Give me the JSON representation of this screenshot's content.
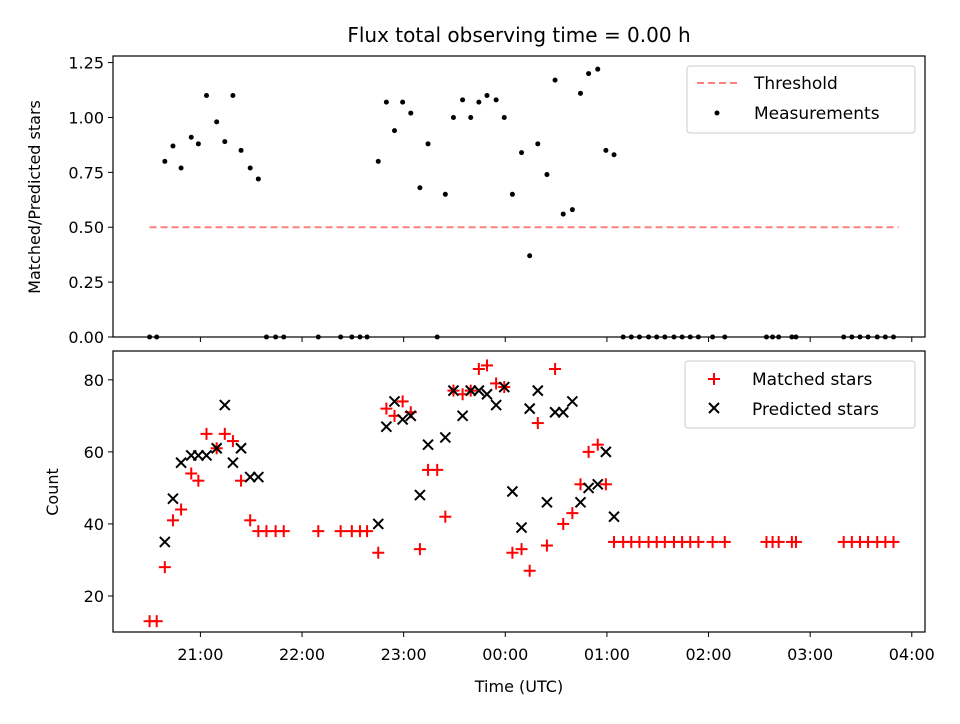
{
  "title": "Flux total observing time = 0.00 h",
  "colors": {
    "threshold": "#ff7f7f",
    "measurement": "#000000",
    "matched": "#ff0000",
    "predicted": "#000000"
  },
  "chart_data": [
    {
      "type": "scatter",
      "title": "Flux total observing time = 0.00 h",
      "ylabel": "Matched/Predicted stars",
      "xlabel": "",
      "x_unit": "hours after 21:00 UTC (axis shows clock times)",
      "xlim": [
        -0.86,
        7.13
      ],
      "ylim": [
        0,
        1.28
      ],
      "yticks": [
        0.0,
        0.25,
        0.5,
        0.75,
        1.0,
        1.25
      ],
      "ytick_labels": [
        "0.00",
        "0.25",
        "0.50",
        "0.75",
        "1.00",
        "1.25"
      ],
      "xticks": [
        0,
        1,
        2,
        3,
        4,
        5,
        6,
        7
      ],
      "legend": {
        "placement": "top-right",
        "entries": [
          "Threshold",
          "Measurements"
        ]
      },
      "threshold": {
        "name": "Threshold",
        "y": 0.5,
        "x_range": [
          -0.5,
          6.87
        ]
      },
      "series": [
        {
          "name": "Measurements",
          "points": [
            [
              -0.5,
              0
            ],
            [
              -0.43,
              0
            ],
            [
              -0.35,
              0.8
            ],
            [
              -0.27,
              0.87
            ],
            [
              -0.19,
              0.77
            ],
            [
              -0.09,
              0.91
            ],
            [
              -0.02,
              0.88
            ],
            [
              0.06,
              1.1
            ],
            [
              0.16,
              0.98
            ],
            [
              0.24,
              0.89
            ],
            [
              0.32,
              1.1
            ],
            [
              0.4,
              0.85
            ],
            [
              0.49,
              0.77
            ],
            [
              0.57,
              0.72
            ],
            [
              0.65,
              0
            ],
            [
              0.74,
              0
            ],
            [
              0.82,
              0
            ],
            [
              1.16,
              0
            ],
            [
              1.38,
              0
            ],
            [
              1.49,
              0
            ],
            [
              1.57,
              0
            ],
            [
              1.64,
              0
            ],
            [
              1.75,
              0.8
            ],
            [
              1.83,
              1.07
            ],
            [
              1.91,
              0.94
            ],
            [
              1.99,
              1.07
            ],
            [
              2.07,
              1.02
            ],
            [
              2.16,
              0.68
            ],
            [
              2.24,
              0.88
            ],
            [
              2.33,
              0
            ],
            [
              2.41,
              0.65
            ],
            [
              2.49,
              1.0
            ],
            [
              2.58,
              1.08
            ],
            [
              2.66,
              1.0
            ],
            [
              2.74,
              1.07
            ],
            [
              2.82,
              1.1
            ],
            [
              2.91,
              1.08
            ],
            [
              2.99,
              1.0
            ],
            [
              3.07,
              0.65
            ],
            [
              3.16,
              0.84
            ],
            [
              3.24,
              0.37
            ],
            [
              3.32,
              0.88
            ],
            [
              3.41,
              0.74
            ],
            [
              3.49,
              1.17
            ],
            [
              3.57,
              0.56
            ],
            [
              3.66,
              0.58
            ],
            [
              3.74,
              1.11
            ],
            [
              3.82,
              1.2
            ],
            [
              3.91,
              1.22
            ],
            [
              3.99,
              0.85
            ],
            [
              4.07,
              0.83
            ],
            [
              4.16,
              0
            ],
            [
              4.24,
              0
            ],
            [
              4.32,
              0
            ],
            [
              4.41,
              0
            ],
            [
              4.49,
              0
            ],
            [
              4.57,
              0
            ],
            [
              4.66,
              0
            ],
            [
              4.74,
              0
            ],
            [
              4.82,
              0
            ],
            [
              4.9,
              0
            ],
            [
              5.04,
              0
            ],
            [
              5.16,
              0
            ],
            [
              5.57,
              0
            ],
            [
              5.63,
              0
            ],
            [
              5.69,
              0
            ],
            [
              5.82,
              0
            ],
            [
              5.86,
              0
            ],
            [
              6.33,
              0
            ],
            [
              6.41,
              0
            ],
            [
              6.49,
              0
            ],
            [
              6.57,
              0
            ],
            [
              6.66,
              0
            ],
            [
              6.74,
              0
            ],
            [
              6.82,
              0
            ]
          ]
        }
      ]
    },
    {
      "type": "scatter",
      "ylabel": "Count",
      "xlabel": "Time (UTC)",
      "x_unit": "hours after 21:00 UTC (axis shows clock times)",
      "xlim": [
        -0.86,
        7.13
      ],
      "ylim": [
        10,
        88
      ],
      "yticks": [
        20,
        40,
        60,
        80
      ],
      "ytick_labels": [
        "20",
        "40",
        "60",
        "80"
      ],
      "xticks": [
        0,
        1,
        2,
        3,
        4,
        5,
        6,
        7
      ],
      "xtick_labels": [
        "21:00",
        "22:00",
        "23:00",
        "00:00",
        "01:00",
        "02:00",
        "03:00",
        "04:00"
      ],
      "legend": {
        "placement": "top-right",
        "entries": [
          "Matched stars",
          "Predicted stars"
        ]
      },
      "series": [
        {
          "name": "Matched stars",
          "points": [
            [
              -0.5,
              13
            ],
            [
              -0.43,
              13
            ],
            [
              -0.35,
              28
            ],
            [
              -0.27,
              41
            ],
            [
              -0.19,
              44
            ],
            [
              -0.09,
              54
            ],
            [
              -0.02,
              52
            ],
            [
              0.06,
              65
            ],
            [
              0.16,
              61
            ],
            [
              0.24,
              65
            ],
            [
              0.32,
              63
            ],
            [
              0.4,
              52
            ],
            [
              0.49,
              41
            ],
            [
              0.57,
              38
            ],
            [
              0.65,
              38
            ],
            [
              0.74,
              38
            ],
            [
              0.82,
              38
            ],
            [
              1.16,
              38
            ],
            [
              1.38,
              38
            ],
            [
              1.49,
              38
            ],
            [
              1.57,
              38
            ],
            [
              1.64,
              38
            ],
            [
              1.75,
              32
            ],
            [
              1.83,
              72
            ],
            [
              1.91,
              70
            ],
            [
              1.99,
              74
            ],
            [
              2.07,
              71
            ],
            [
              2.16,
              33
            ],
            [
              2.24,
              55
            ],
            [
              2.33,
              55
            ],
            [
              2.41,
              42
            ],
            [
              2.49,
              77
            ],
            [
              2.58,
              76
            ],
            [
              2.66,
              77
            ],
            [
              2.74,
              83
            ],
            [
              2.82,
              84
            ],
            [
              2.91,
              79
            ],
            [
              2.99,
              78
            ],
            [
              3.07,
              32
            ],
            [
              3.16,
              33
            ],
            [
              3.24,
              27
            ],
            [
              3.32,
              68
            ],
            [
              3.41,
              34
            ],
            [
              3.49,
              83
            ],
            [
              3.57,
              40
            ],
            [
              3.66,
              43
            ],
            [
              3.74,
              51
            ],
            [
              3.82,
              60
            ],
            [
              3.91,
              62
            ],
            [
              3.99,
              51
            ],
            [
              4.07,
              35
            ],
            [
              4.16,
              35
            ],
            [
              4.24,
              35
            ],
            [
              4.32,
              35
            ],
            [
              4.41,
              35
            ],
            [
              4.49,
              35
            ],
            [
              4.57,
              35
            ],
            [
              4.66,
              35
            ],
            [
              4.74,
              35
            ],
            [
              4.82,
              35
            ],
            [
              4.9,
              35
            ],
            [
              5.04,
              35
            ],
            [
              5.16,
              35
            ],
            [
              5.57,
              35
            ],
            [
              5.63,
              35
            ],
            [
              5.69,
              35
            ],
            [
              5.82,
              35
            ],
            [
              5.86,
              35
            ],
            [
              6.33,
              35
            ],
            [
              6.41,
              35
            ],
            [
              6.49,
              35
            ],
            [
              6.57,
              35
            ],
            [
              6.66,
              35
            ],
            [
              6.74,
              35
            ],
            [
              6.82,
              35
            ]
          ]
        },
        {
          "name": "Predicted stars",
          "points": [
            [
              -0.35,
              35
            ],
            [
              -0.27,
              47
            ],
            [
              -0.19,
              57
            ],
            [
              -0.09,
              59
            ],
            [
              -0.02,
              59
            ],
            [
              0.06,
              59
            ],
            [
              0.16,
              61
            ],
            [
              0.24,
              73
            ],
            [
              0.32,
              57
            ],
            [
              0.4,
              61
            ],
            [
              0.49,
              53
            ],
            [
              0.57,
              53
            ],
            [
              1.75,
              40
            ],
            [
              1.83,
              67
            ],
            [
              1.91,
              74
            ],
            [
              1.99,
              69
            ],
            [
              2.07,
              70
            ],
            [
              2.16,
              48
            ],
            [
              2.24,
              62
            ],
            [
              2.41,
              64
            ],
            [
              2.49,
              77
            ],
            [
              2.58,
              70
            ],
            [
              2.66,
              77
            ],
            [
              2.74,
              77
            ],
            [
              2.82,
              76
            ],
            [
              2.91,
              73
            ],
            [
              2.99,
              78
            ],
            [
              3.07,
              49
            ],
            [
              3.16,
              39
            ],
            [
              3.24,
              72
            ],
            [
              3.32,
              77
            ],
            [
              3.41,
              46
            ],
            [
              3.49,
              71
            ],
            [
              3.57,
              71
            ],
            [
              3.66,
              74
            ],
            [
              3.74,
              46
            ],
            [
              3.82,
              50
            ],
            [
              3.91,
              51
            ],
            [
              3.99,
              60
            ],
            [
              4.07,
              42
            ]
          ]
        }
      ]
    }
  ]
}
